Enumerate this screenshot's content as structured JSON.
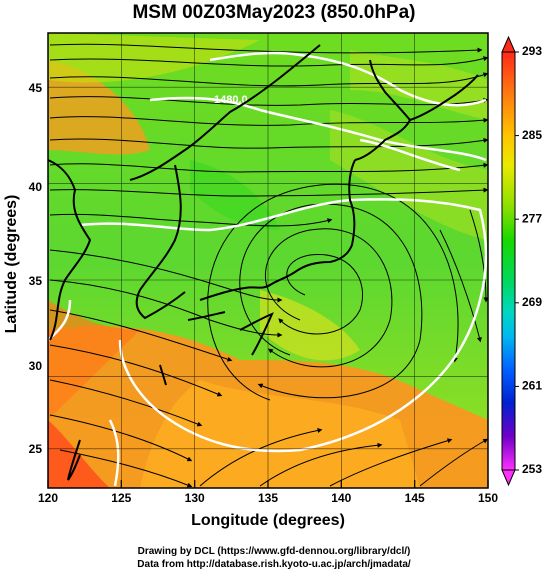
{
  "title": "MSM 00Z03May2023 (850.0hPa)",
  "xlabel": "Longitude (degrees)",
  "ylabel": "Latitude  (degrees)",
  "credits": [
    "Drawing by DCL (https://www.gfd-dennou.org/library/dcl/)",
    "Data from http://database.rish.kyoto-u.ac.jp/arch/jmadata/"
  ],
  "chart_data": {
    "type": "heatmap",
    "variable": "850hPa temperature with wind streamlines",
    "xlim": [
      120,
      150
    ],
    "ylim": [
      22.4,
      47.6
    ],
    "x_ticks": [
      "120",
      "125",
      "130",
      "135",
      "140",
      "145",
      "150"
    ],
    "y_ticks": [
      "25",
      "30",
      "35",
      "40",
      "45"
    ],
    "colorbar": {
      "min": 253,
      "max": 293,
      "ticks": [
        "293",
        "285",
        "277",
        "269",
        "261",
        "253"
      ],
      "colors": [
        "#ff2a1a",
        "#ffb000",
        "#e9ea00",
        "#6ddc00",
        "#00d800",
        "#00d8a0",
        "#00c8e8",
        "#0090ff",
        "#0030e0",
        "#4000c0",
        "#c000d0",
        "#ff40ff"
      ]
    },
    "contour_label": "1480.0",
    "grid": true
  }
}
